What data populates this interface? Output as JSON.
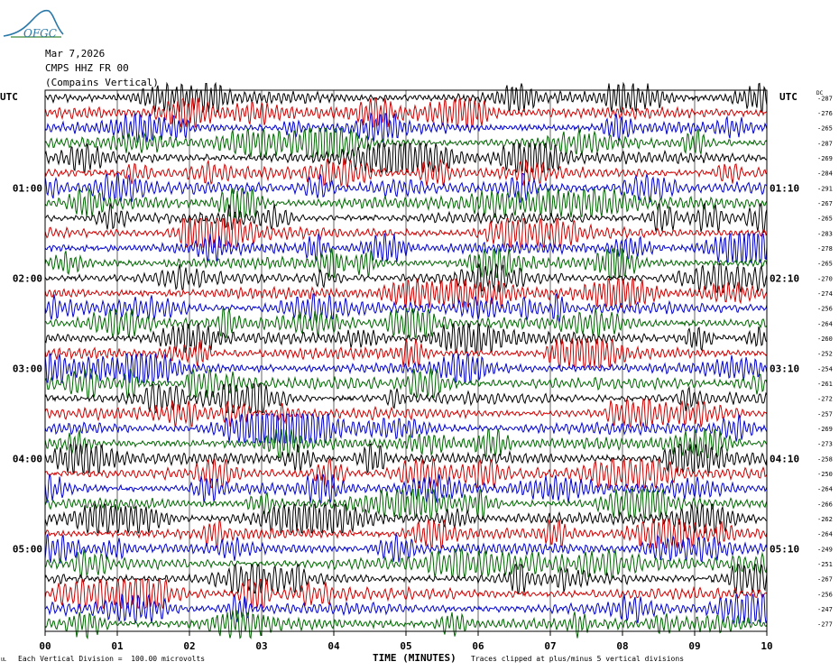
{
  "header": {
    "logo_text": "OFGC",
    "date": "Mar 7,2026",
    "channel": "CMPS HHZ FR 00",
    "location": "(Compains Vertical)",
    "left_tz": "UTC",
    "right_tz": "UTC",
    "dc_label": "DC"
  },
  "footer": {
    "corner_mark": "UL",
    "scale_note": "Each Vertical Division =  100.00 microvolts",
    "xlabel": "TIME (MINUTES)",
    "clip_note": "Traces clipped at plus/minus 5 vertical divisions"
  },
  "colors": {
    "cycle": [
      "#000000",
      "#cc0000",
      "#0000cc",
      "#006600"
    ],
    "logo": "#2a78a8"
  },
  "chart_data": {
    "type": "line",
    "title": "",
    "xlabel": "TIME (MINUTES)",
    "x_ticks": [
      "00",
      "01",
      "02",
      "03",
      "04",
      "05",
      "06",
      "07",
      "08",
      "09",
      "10"
    ],
    "xlim": [
      0,
      10
    ],
    "trace_count": 36,
    "left_hour_labels": [
      {
        "row": 6,
        "label": "01:00"
      },
      {
        "row": 12,
        "label": "02:00"
      },
      {
        "row": 18,
        "label": "03:00"
      },
      {
        "row": 24,
        "label": "04:00"
      },
      {
        "row": 30,
        "label": "05:00"
      }
    ],
    "right_hour_labels": [
      {
        "row": 6,
        "label": "01:10"
      },
      {
        "row": 12,
        "label": "02:10"
      },
      {
        "row": 18,
        "label": "03:10"
      },
      {
        "row": 24,
        "label": "04:10"
      },
      {
        "row": 30,
        "label": "05:10"
      }
    ],
    "dc_offsets": [
      "-287",
      "-276",
      "-265",
      "-287",
      "-269",
      "-284",
      "-291",
      "-267",
      "-265",
      "-283",
      "-278",
      "-265",
      "-270",
      "-274",
      "-256",
      "-264",
      "-260",
      "-252",
      "-254",
      "-261",
      "-272",
      "-257",
      "-269",
      "-273",
      "-258",
      "-250",
      "-264",
      "-266",
      "-262",
      "-264",
      "-249",
      "-251",
      "-267",
      "-256",
      "-247",
      "-277"
    ]
  }
}
